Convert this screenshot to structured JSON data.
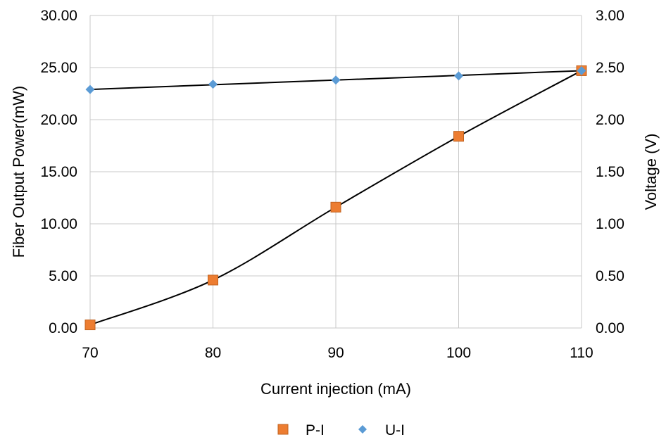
{
  "chart_data": {
    "type": "scatter",
    "xlabel": "Current injection (mA)",
    "ylabel": "Fiber Output Power(mW)",
    "y2label": "Voltage (V)",
    "xlim": [
      70,
      110
    ],
    "ylim": [
      0,
      30
    ],
    "y2lim": [
      0,
      3
    ],
    "xticks": [
      70,
      80,
      90,
      100,
      110
    ],
    "xtick_labels": [
      "70",
      "80",
      "90",
      "100",
      "110"
    ],
    "yticks": [
      0,
      5,
      10,
      15,
      20,
      25,
      30
    ],
    "ytick_labels": [
      "0.00",
      "5.00",
      "10.00",
      "15.00",
      "20.00",
      "25.00",
      "30.00"
    ],
    "y2ticks": [
      0,
      0.5,
      1,
      1.5,
      2,
      2.5,
      3
    ],
    "y2tick_labels": [
      "0.00",
      "0.50",
      "1.00",
      "1.50",
      "2.00",
      "2.50",
      "3.00"
    ],
    "grid": true,
    "legend_position": "bottom",
    "series": [
      {
        "name": "P-I",
        "axis": "left",
        "marker": "square",
        "color": "#ED7D31",
        "x": [
          70,
          80,
          90,
          100,
          110
        ],
        "y": [
          0.3,
          4.6,
          11.6,
          18.4,
          24.7
        ],
        "trendline": "smooth"
      },
      {
        "name": "U-I",
        "axis": "right",
        "marker": "diamond",
        "color": "#5B9BD5",
        "x": [
          70,
          80,
          90,
          100,
          110
        ],
        "y": [
          2.29,
          2.34,
          2.38,
          2.42,
          2.47
        ],
        "trendline": "linear"
      }
    ]
  }
}
